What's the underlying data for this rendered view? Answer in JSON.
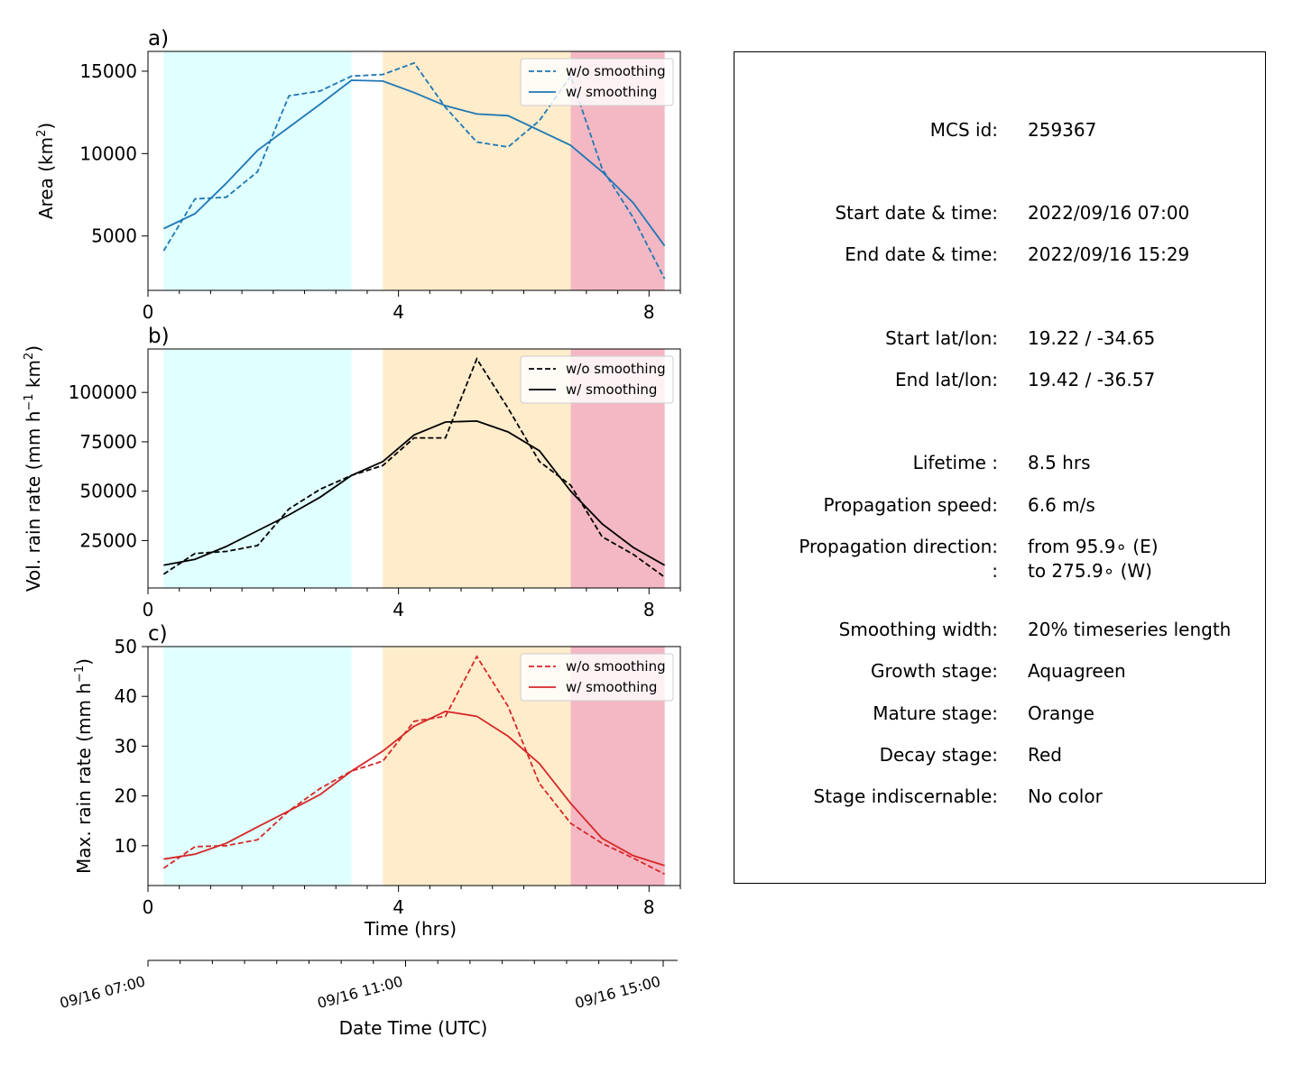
{
  "chart_data": [
    {
      "type": "line",
      "panel_label": "a)",
      "ylabel": "Area  (km²)",
      "ylabel_parts": [
        "Area  (km",
        "2",
        ")"
      ],
      "xlim": [
        0,
        8.5
      ],
      "ylim": [
        1700,
        16200
      ],
      "xticks": [
        0,
        4,
        8
      ],
      "yticks": [
        5000,
        10000,
        15000
      ],
      "legend_position": "top-right",
      "color": "#1f77b4",
      "x": [
        0.25,
        0.75,
        1.25,
        1.75,
        2.25,
        2.75,
        3.25,
        3.75,
        4.25,
        4.75,
        5.25,
        5.75,
        6.25,
        6.75,
        7.25,
        7.75,
        8.25
      ],
      "series": [
        {
          "name": "w/o smoothing",
          "style": "dashed",
          "values": [
            4100,
            7250,
            7350,
            8900,
            13500,
            13800,
            14700,
            14800,
            15500,
            12800,
            10700,
            10400,
            12000,
            14700,
            9100,
            6100,
            2400
          ]
        },
        {
          "name": "w/ smoothing",
          "style": "solid",
          "values": [
            5450,
            6350,
            8200,
            10200,
            11600,
            13000,
            14450,
            14400,
            13700,
            12900,
            12400,
            12300,
            11400,
            10500,
            8900,
            7000,
            4400
          ]
        }
      ]
    },
    {
      "type": "line",
      "panel_label": "b)",
      "ylabel": "Vol. rain rate (mm h⁻¹ km²)",
      "ylabel_parts": [
        "Vol. rain rate (mm h",
        "−1",
        " km",
        "2",
        ")"
      ],
      "xlim": [
        0,
        8.5
      ],
      "ylim": [
        1000,
        122000
      ],
      "xticks": [
        0,
        4,
        8
      ],
      "yticks": [
        25000,
        50000,
        75000,
        100000
      ],
      "legend_position": "top-right",
      "color": "#000000",
      "x": [
        0.25,
        0.75,
        1.25,
        1.75,
        2.25,
        2.75,
        3.25,
        3.75,
        4.25,
        4.75,
        5.25,
        5.75,
        6.25,
        6.75,
        7.25,
        7.75,
        8.25
      ],
      "series": [
        {
          "name": "w/o smoothing",
          "style": "dashed",
          "values": [
            8000,
            18500,
            19500,
            22500,
            41000,
            51000,
            58000,
            63000,
            77000,
            77000,
            117000,
            92000,
            65000,
            53000,
            27000,
            18000,
            6500
          ]
        },
        {
          "name": "w/ smoothing",
          "style": "solid",
          "values": [
            12500,
            15500,
            22000,
            30000,
            38000,
            47000,
            58000,
            65000,
            78500,
            85000,
            85500,
            80000,
            70500,
            50000,
            33500,
            21500,
            12500
          ]
        }
      ]
    },
    {
      "type": "line",
      "panel_label": "c)",
      "ylabel": "Max. rain rate  (mm h⁻¹)",
      "ylabel_parts": [
        "Max. rain rate  (mm h",
        "−1",
        ")"
      ],
      "xlabel": "Time (hrs)",
      "xlim": [
        0,
        8.5
      ],
      "ylim": [
        2,
        50
      ],
      "xticks": [
        0,
        4,
        8
      ],
      "yticks": [
        10,
        20,
        30,
        40,
        50
      ],
      "legend_position": "top-right",
      "color": "#d62728",
      "x": [
        0.25,
        0.75,
        1.25,
        1.75,
        2.25,
        2.75,
        3.25,
        3.75,
        4.25,
        4.75,
        5.25,
        5.75,
        6.25,
        6.75,
        7.25,
        7.75,
        8.25
      ],
      "series": [
        {
          "name": "w/o smoothing",
          "style": "dashed",
          "values": [
            5.5,
            9.8,
            10,
            11.2,
            17,
            21.5,
            25,
            27,
            35,
            36,
            48,
            38,
            22.5,
            14.5,
            10.5,
            7.5,
            4.3
          ]
        },
        {
          "name": "w/ smoothing",
          "style": "solid",
          "values": [
            7.3,
            8.3,
            10.5,
            13.8,
            17,
            20.3,
            25,
            29,
            34,
            37,
            36,
            32,
            26.5,
            18.5,
            11.5,
            8,
            6
          ]
        }
      ]
    }
  ],
  "stages": [
    {
      "name": "growth",
      "start": 0.25,
      "end": 3.25,
      "color": "#e0ffff"
    },
    {
      "name": "mature",
      "start": 3.75,
      "end": 6.75,
      "color": "#ffeccb"
    },
    {
      "name": "decay",
      "start": 6.75,
      "end": 8.25,
      "color": "#f4b8c4"
    }
  ],
  "date_axis": {
    "title": "Date Time (UTC)",
    "xlim": [
      0,
      8.25
    ],
    "major_ticks": [
      {
        "t": 0,
        "label": "09/16 07:00"
      },
      {
        "t": 4,
        "label": "09/16 11:00"
      },
      {
        "t": 8,
        "label": "09/16 15:00"
      }
    ],
    "minor_ticks": [
      0.5,
      1,
      1.5,
      2,
      2.5,
      3,
      3.5,
      4.5,
      5,
      5.5,
      6,
      6.5,
      7,
      7.5
    ]
  },
  "info": [
    {
      "label": "MCS id:",
      "value": "259367"
    },
    {
      "label": "Start date & time:",
      "value": "2022/09/16 07:00"
    },
    {
      "label": "End date & time:",
      "value": "2022/09/16 15:29"
    },
    {
      "label": "Start lat/lon:",
      "value": "19.22 / -34.65"
    },
    {
      "label": "End lat/lon:",
      "value": "19.42 / -36.57"
    },
    {
      "label": "Lifetime :",
      "value": "8.5 hrs"
    },
    {
      "label": "Propagation speed:",
      "value": "6.6 m/s"
    },
    {
      "label": "Propagation direction:",
      "value": "from  95.9∘ (E)"
    },
    {
      "label": ":",
      "value": "to   275.9∘ (W)"
    },
    {
      "label": "Smoothing width:",
      "value": "20% timeseries length"
    },
    {
      "label": "Growth stage:",
      "value": "Aquagreen"
    },
    {
      "label": "Mature stage:",
      "value": "Orange"
    },
    {
      "label": "Decay stage:",
      "value": "Red"
    },
    {
      "label": "Stage indiscernable:",
      "value": "No color"
    }
  ]
}
